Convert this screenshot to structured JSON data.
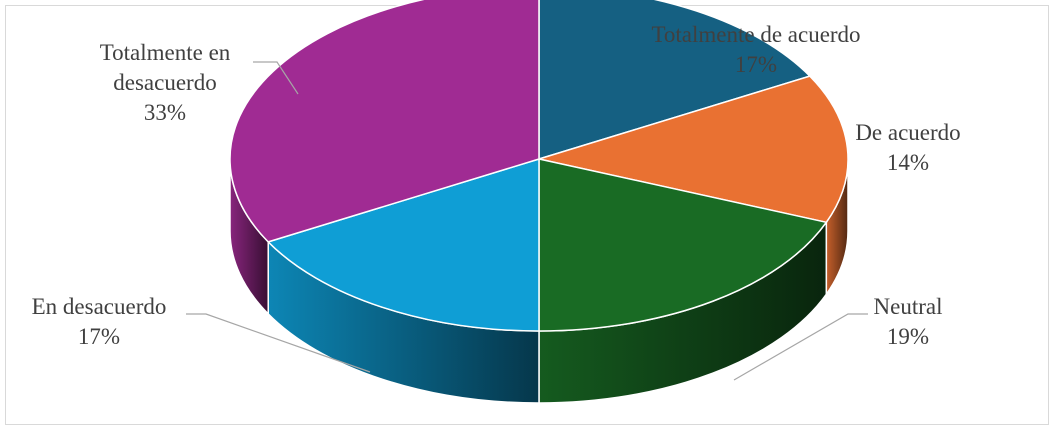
{
  "chart_data": {
    "type": "pie",
    "title": "",
    "style": "3d",
    "start_angle_deg": 90,
    "direction": "clockwise",
    "slices": [
      {
        "label_lines": [
          "Totalmente de acuerdo"
        ],
        "percent_label": "17%",
        "value": 17,
        "color": "#156082"
      },
      {
        "label_lines": [
          "De acuerdo"
        ],
        "percent_label": "14%",
        "value": 14,
        "color": "#E97132"
      },
      {
        "label_lines": [
          "Neutral"
        ],
        "percent_label": "19%",
        "value": 19,
        "color": "#196B24"
      },
      {
        "label_lines": [
          "En desacuerdo"
        ],
        "percent_label": "17%",
        "value": 17,
        "color": "#0F9ED5"
      },
      {
        "label_lines": [
          "Totalmente en",
          "desacuerdo"
        ],
        "percent_label": "33%",
        "value": 33,
        "color": "#A02B93"
      }
    ]
  }
}
